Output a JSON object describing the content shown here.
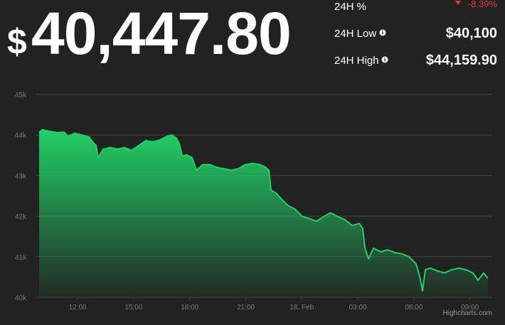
{
  "header": {
    "currency_symbol": "$",
    "price": "40,447.80",
    "stats": [
      {
        "label": "24H %",
        "value": "-8.39%"
      },
      {
        "label": "24H Low",
        "value": "$40,100"
      },
      {
        "label": "24H High",
        "value": "$44,159.90"
      }
    ]
  },
  "chart_data": {
    "type": "area",
    "x": [
      9.94,
      10.13,
      10.52,
      10.9,
      11.28,
      11.47,
      11.85,
      12.23,
      12.61,
      12.8,
      12.99,
      13.1,
      13.37,
      13.75,
      14.13,
      14.51,
      14.89,
      15.27,
      15.65,
      16.04,
      16.42,
      16.8,
      17.06,
      17.29,
      17.44,
      17.6,
      17.82,
      18.13,
      18.36,
      18.7,
      19.08,
      19.46,
      19.84,
      20.22,
      20.6,
      20.98,
      21.36,
      21.75,
      22.01,
      22.24,
      22.35,
      22.62,
      22.89,
      23.27,
      23.65,
      24.03,
      24.41,
      24.79,
      25.17,
      25.55,
      25.93,
      26.31,
      26.69,
      27.07,
      27.26,
      27.38,
      27.57,
      27.84,
      28.22,
      28.6,
      28.98,
      29.36,
      29.74,
      30.12,
      30.31,
      30.46,
      30.61,
      30.88,
      31.26,
      31.64,
      32.02,
      32.4,
      32.78,
      33.16,
      33.43,
      33.73,
      33.96
    ],
    "values": [
      44070,
      44130,
      44090,
      44060,
      44070,
      43970,
      44040,
      44000,
      43950,
      43830,
      43740,
      43440,
      43650,
      43690,
      43650,
      43690,
      43620,
      43740,
      43860,
      43830,
      43880,
      43970,
      44000,
      43920,
      43790,
      43480,
      43510,
      43440,
      43130,
      43270,
      43270,
      43200,
      43170,
      43130,
      43170,
      43270,
      43300,
      43270,
      43220,
      43130,
      42640,
      42570,
      42430,
      42260,
      42170,
      41990,
      41940,
      41870,
      41990,
      42080,
      41990,
      41910,
      41770,
      41820,
      41700,
      41210,
      40950,
      41210,
      41120,
      41170,
      41100,
      41070,
      41000,
      40820,
      40510,
      40160,
      40680,
      40720,
      40650,
      40600,
      40680,
      40720,
      40680,
      40600,
      40420,
      40600,
      40470
    ],
    "color": "#22d066",
    "xlim": [
      9.75,
      34.19
    ],
    "xticks": [
      {
        "value": 12,
        "label": "12:00"
      },
      {
        "value": 15,
        "label": "15:00"
      },
      {
        "value": 18,
        "label": "18:00"
      },
      {
        "value": 21,
        "label": "21:00"
      },
      {
        "value": 24,
        "label": "18. Feb"
      },
      {
        "value": 27,
        "label": "03:00"
      },
      {
        "value": 30,
        "label": "06:00"
      },
      {
        "value": 33,
        "label": "09:00"
      }
    ],
    "ylim": [
      40000,
      45000
    ],
    "yticks": [
      {
        "value": 40000,
        "label": "40k"
      },
      {
        "value": 41000,
        "label": "41k"
      },
      {
        "value": 42000,
        "label": "42k"
      },
      {
        "value": 43000,
        "label": "43k"
      },
      {
        "value": 44000,
        "label": "44k"
      },
      {
        "value": 45000,
        "label": "45k"
      }
    ],
    "grid": true,
    "credits": "Highcharts.com"
  }
}
